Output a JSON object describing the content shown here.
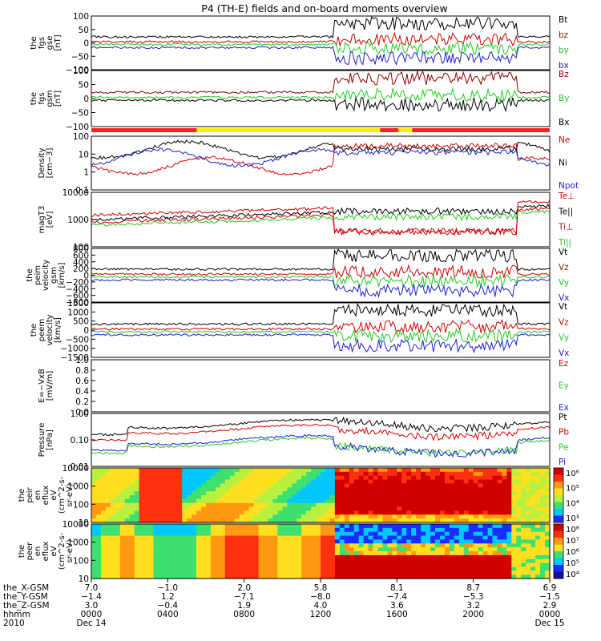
{
  "title": "P4 (TH-E) fields and on-board moments overview",
  "chart_data": [
    {
      "id": "fgs_gse",
      "type": "line",
      "ylabel": [
        "the",
        "fgs",
        "gse",
        "[nT]"
      ],
      "ylim": [
        -100,
        100
      ],
      "yticks": [
        "100",
        "50",
        "0",
        "−50",
        "−100"
      ],
      "legend": [
        {
          "name": "Bt",
          "color": "#000000"
        },
        {
          "name": "bz",
          "color": "#d40000"
        },
        {
          "name": "by",
          "color": "#22cc22"
        },
        {
          "name": "bx",
          "color": "#1f1fd0"
        }
      ]
    },
    {
      "id": "fgs_gsm",
      "type": "line",
      "ylabel": [
        "the",
        "fgs",
        "gsm",
        "[nT]"
      ],
      "ylim": [
        -120,
        120
      ],
      "yticks": [
        "100",
        "50",
        "0",
        "−50",
        "−100"
      ],
      "legend": [
        {
          "name": "Bz",
          "color": "#8b0000"
        },
        {
          "name": "By",
          "color": "#22cc22"
        },
        {
          "name": "Bx",
          "color": "#000000"
        }
      ]
    },
    {
      "id": "mode_bar",
      "type": "bar",
      "segments": [
        {
          "from": 0.0,
          "to": 0.23,
          "color": "#ff2020"
        },
        {
          "from": 0.23,
          "to": 0.63,
          "color": "#ffee00"
        },
        {
          "from": 0.63,
          "to": 0.67,
          "color": "#ff2020"
        },
        {
          "from": 0.67,
          "to": 0.7,
          "color": "#ffee00"
        },
        {
          "from": 0.7,
          "to": 1.0,
          "color": "#ff2020"
        }
      ]
    },
    {
      "id": "density",
      "type": "line",
      "ylabel": [
        "Density",
        "[cm−3]"
      ],
      "yscale": "log",
      "ylim": [
        0.1,
        100
      ],
      "yticks": [
        "100",
        "10",
        "1",
        "0.1"
      ],
      "legend": [
        {
          "name": "Ne",
          "color": "#d40000"
        },
        {
          "name": "Ni",
          "color": "#000000"
        },
        {
          "name": "Npot",
          "color": "#1f1fd0"
        }
      ]
    },
    {
      "id": "temperature",
      "type": "line",
      "ylabel": [
        "magT3",
        "[eV]"
      ],
      "yscale": "log",
      "ylim": [
        30,
        15000
      ],
      "yticks": [
        "10000",
        "1000",
        "100"
      ],
      "legend": [
        {
          "name": "Te⊥",
          "color": "#d40000"
        },
        {
          "name": "Te||",
          "color": "#000000"
        },
        {
          "name": "Ti⊥",
          "color": "#d40000"
        },
        {
          "name": "Ti||",
          "color": "#22cc22"
        }
      ]
    },
    {
      "id": "peim_velocity",
      "type": "line",
      "ylabel": [
        "the",
        "peim",
        "velocity",
        "gsm",
        "[km/s]"
      ],
      "ylim": [
        -1000,
        1000
      ],
      "yticks": [
        "800",
        "600",
        "400",
        "200",
        "0",
        "−200",
        "−400",
        "−600",
        "−800"
      ],
      "legend": [
        {
          "name": "Vt",
          "color": "#000000"
        },
        {
          "name": "Vz",
          "color": "#d40000"
        },
        {
          "name": "Vy",
          "color": "#22cc22"
        },
        {
          "name": "Vx",
          "color": "#1f1fd0"
        }
      ]
    },
    {
      "id": "peem_velocity",
      "type": "line",
      "ylabel": [
        "the",
        "peem",
        "velocity",
        "[km/s]"
      ],
      "ylim": [
        -1500,
        1500
      ],
      "yticks": [
        "1500",
        "1000",
        "500",
        "0",
        "−500",
        "−1000",
        "−1500"
      ],
      "legend": [
        {
          "name": "Vt",
          "color": "#000000"
        },
        {
          "name": "Vz",
          "color": "#d40000"
        },
        {
          "name": "Vy",
          "color": "#22cc22"
        },
        {
          "name": "Vx",
          "color": "#1f1fd0"
        }
      ]
    },
    {
      "id": "efield",
      "type": "line",
      "ylabel": [
        "E=−VxB",
        "[mV/m]"
      ],
      "ylim": [
        0,
        1
      ],
      "yticks": [
        "1.0",
        "0.8",
        "0.6",
        "0.4",
        "0.2",
        "0.0"
      ],
      "legend": [
        {
          "name": "Ez",
          "color": "#d40000"
        },
        {
          "name": "Ey",
          "color": "#22cc22"
        },
        {
          "name": "Ex",
          "color": "#1f1fd0"
        }
      ]
    },
    {
      "id": "pressure",
      "type": "line",
      "ylabel": [
        "Pressure",
        "[nPa]"
      ],
      "yscale": "log",
      "ylim": [
        0.005,
        5
      ],
      "yticks": [
        "1.00",
        "0.10",
        "0.01"
      ],
      "legend": [
        {
          "name": "Pt",
          "color": "#000000"
        },
        {
          "name": "Pb",
          "color": "#d40000"
        },
        {
          "name": "Pe",
          "color": "#22cc22"
        },
        {
          "name": "Pi",
          "color": "#1f1fd0"
        }
      ]
    },
    {
      "id": "peir_eflux",
      "type": "heatmap",
      "ylabel": [
        "the",
        "peir",
        "en",
        "eflux",
        "eV",
        "(cm^2-s-",
        "sr-eV)"
      ],
      "yscale": "log",
      "ylim": [
        7,
        25000
      ],
      "yticks": [
        "10000",
        "1000",
        "100",
        "10"
      ],
      "colorbar_labels": [
        "10⁶",
        "10⁵",
        "10⁴",
        "10³"
      ]
    },
    {
      "id": "peer_eflux",
      "type": "heatmap",
      "ylabel": [
        "the",
        "peer",
        "en",
        "eflux",
        "eV",
        "(cm^2-s-",
        "sr-eV)"
      ],
      "yscale": "log",
      "ylim": [
        7,
        25000
      ],
      "yticks": [
        "10000",
        "1000",
        "100",
        "10"
      ],
      "colorbar_labels": [
        "10⁸",
        "10⁷",
        "10⁶",
        "10⁵",
        "10⁴"
      ]
    }
  ],
  "xaxis": {
    "row_labels": [
      "the_X-GSM",
      "the_Y-GSM",
      "the_Z-GSM",
      "hhmm",
      "2010"
    ],
    "ticks": [
      {
        "values": [
          "7.0",
          "−1.4",
          "3.0",
          "0000",
          "Dec 14"
        ]
      },
      {
        "values": [
          "−1.0",
          "1.2",
          "−0.4",
          "0400",
          ""
        ]
      },
      {
        "values": [
          "2.0",
          "−7.1",
          "1.9",
          "0800",
          ""
        ]
      },
      {
        "values": [
          "5.8",
          "−8.0",
          "4.0",
          "1200",
          ""
        ]
      },
      {
        "values": [
          "8.1",
          "−7.4",
          "3.6",
          "1600",
          ""
        ]
      },
      {
        "values": [
          "8.7",
          "−5.3",
          "3.2",
          "2000",
          ""
        ]
      },
      {
        "values": [
          "6.9",
          "−1.5",
          "2.9",
          "0000",
          "Dec 15"
        ]
      }
    ]
  }
}
